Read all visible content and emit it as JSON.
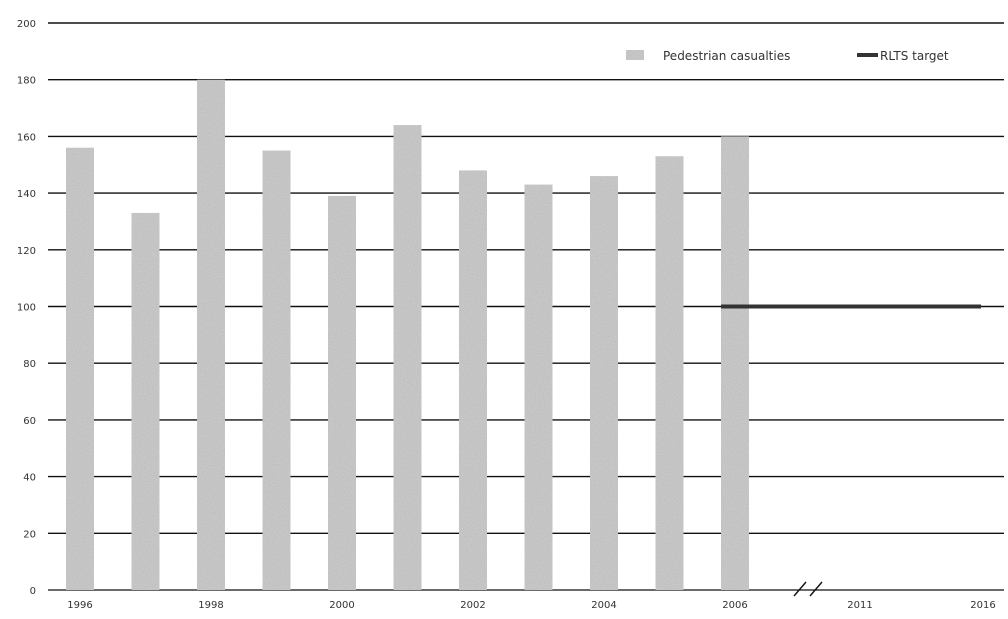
{
  "chart_data": {
    "type": "bar",
    "title": "",
    "xlabel": "",
    "ylabel": "",
    "ylim": [
      0,
      200
    ],
    "grid": true,
    "legend_position": "top-right",
    "y_ticks": [
      0,
      20,
      40,
      60,
      80,
      100,
      120,
      140,
      160,
      180,
      200
    ],
    "y_tick_labels": [
      "0",
      "20",
      "40",
      "60",
      "80",
      "100",
      "120",
      "140",
      "160",
      "180",
      "200"
    ],
    "categories": [
      "1996",
      "1997",
      "1998",
      "1999",
      "2000",
      "2001",
      "2002",
      "2003",
      "2004",
      "2005",
      "2006"
    ],
    "x_tick_labels": [
      "1996",
      "1998",
      "2000",
      "2002",
      "2004",
      "2006",
      "2011",
      "2016"
    ],
    "series": [
      {
        "name": "Pedestrian casualties",
        "type": "bar",
        "color": "#c8c8c8",
        "values": [
          156,
          133,
          180,
          155,
          139,
          164,
          148,
          143,
          146,
          153,
          160
        ]
      },
      {
        "name": "RLTS target",
        "type": "line",
        "color": "#333333",
        "x": [
          "2006",
          "2016"
        ],
        "values": [
          100,
          100
        ]
      }
    ],
    "axis_break_between": [
      "2006",
      "2011"
    ]
  }
}
